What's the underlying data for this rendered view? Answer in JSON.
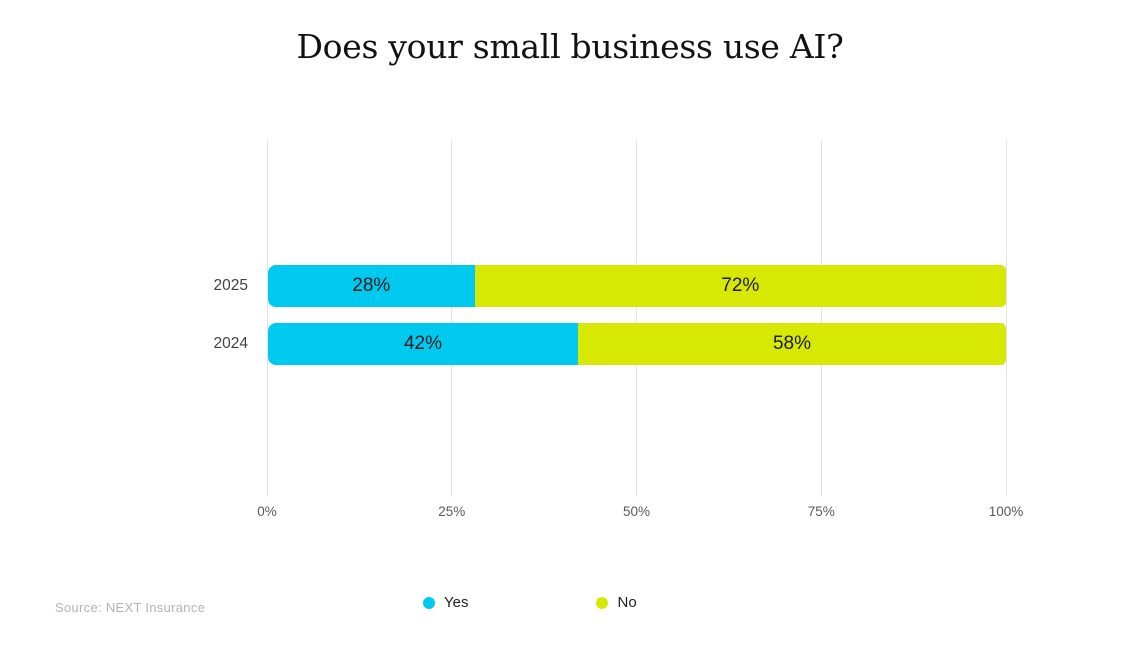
{
  "title": "Does your small business use AI?",
  "source": "Source: NEXT Insurance",
  "chart_data": {
    "type": "bar",
    "orientation": "horizontal",
    "stacked": true,
    "title": "Does your small business use AI?",
    "categories": [
      "2025",
      "2024"
    ],
    "series": [
      {
        "name": "Yes",
        "color": "#00C9F0",
        "values": [
          28,
          42
        ]
      },
      {
        "name": "No",
        "color": "#D7E805",
        "values": [
          72,
          58
        ]
      }
    ],
    "bar_labels": [
      [
        "28%",
        "72%"
      ],
      [
        "42%",
        "58%"
      ]
    ],
    "xlim": [
      0,
      100
    ],
    "x_ticks": [
      "0%",
      "25%",
      "50%",
      "75%",
      "100%"
    ],
    "grid": true,
    "legend_position": "bottom",
    "source_credit": "Source: NEXT Insurance"
  },
  "legend": {
    "items": [
      {
        "label": "Yes",
        "color": "#00C9F0"
      },
      {
        "label": "No",
        "color": "#D7E805"
      }
    ]
  },
  "colors": {
    "background": "#FFFFFF",
    "gridline": "#E3E3E3",
    "title_text": "#121212",
    "bar_label_text": "#1C1C1C",
    "category_text": "#414141",
    "axis_tick_text": "#595959",
    "legend_text": "#1F1F1F",
    "source_text": "#B3B3B3"
  }
}
